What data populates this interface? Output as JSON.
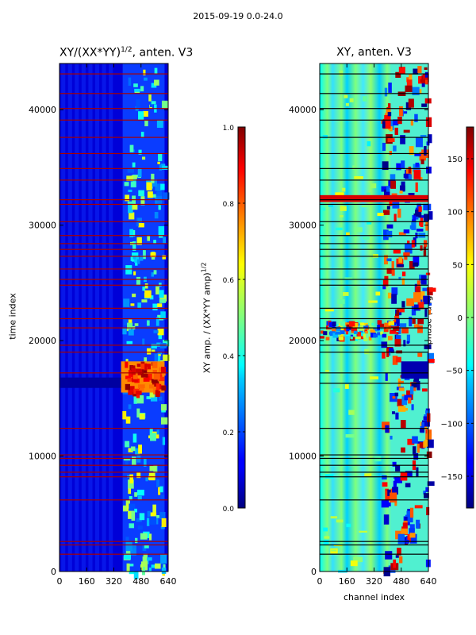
{
  "figure": {
    "suptitle": "2015-09-19 0.0-24.0"
  },
  "chart_data": [
    {
      "type": "heatmap",
      "title_main": "XY/(XX*YY)",
      "title_sup": "1/2",
      "title_tail": ", anten. V3",
      "xlabel": "",
      "ylabel": "time index",
      "xlim": [
        0,
        640
      ],
      "ylim": [
        0,
        44000
      ],
      "xticks": [
        0,
        160,
        320,
        480,
        640
      ],
      "yticks": [
        0,
        10000,
        20000,
        30000,
        40000
      ],
      "colormap": "jet",
      "flag_color": "#a80000",
      "bright_channel_range": [
        400,
        600
      ],
      "saturated_band_y": [
        15500,
        18200
      ],
      "flagged_rows": [
        1500,
        2300,
        2600,
        6200,
        8200,
        8600,
        9200,
        9800,
        10100,
        12400,
        17200,
        19000,
        19600,
        21100,
        21900,
        22800,
        24800,
        25300,
        26200,
        27300,
        27900,
        28400,
        29100,
        30300,
        31800,
        32200,
        33900,
        34900,
        36200,
        37600,
        39100,
        40100,
        41400,
        43100
      ],
      "colorbar": {
        "label_main": "XY amp. / (XX*YY amp)",
        "label_sup": "1/2",
        "vmin": 0.0,
        "vmax": 1.0,
        "ticks": [
          0.0,
          0.2,
          0.4,
          0.6,
          0.8,
          1.0
        ],
        "tick_labels": [
          "0.0",
          "0.2",
          "0.4",
          "0.6",
          "0.8",
          "1.0"
        ]
      }
    },
    {
      "type": "heatmap",
      "title": "XY, anten. V3",
      "xlabel": "channel index",
      "ylabel": "",
      "xlim": [
        0,
        640
      ],
      "ylim": [
        0,
        44000
      ],
      "xticks": [
        0,
        160,
        320,
        480,
        640
      ],
      "yticks": [
        0,
        10000,
        20000,
        30000,
        40000
      ],
      "colormap": "jet",
      "flag_color": "#000000",
      "red_band_y": [
        32000,
        32600
      ],
      "noisy_band_y": [
        20300,
        21800
      ],
      "flagged_rows": [
        1500,
        2300,
        2600,
        6200,
        8200,
        8600,
        9200,
        9800,
        10100,
        12400,
        16300,
        17200,
        19000,
        19600,
        21100,
        21900,
        22800,
        24800,
        25300,
        26200,
        27300,
        27900,
        28400,
        29100,
        30300,
        31800,
        32200,
        33900,
        34900,
        36200,
        37600,
        39100,
        40100,
        41400,
        43100
      ],
      "colorbar": {
        "label": "phase (deg.)",
        "vmin": -180,
        "vmax": 180,
        "ticks": [
          -150,
          -100,
          -50,
          0,
          50,
          100,
          150
        ],
        "tick_labels": [
          "−150",
          "−100",
          "−50",
          "0",
          "50",
          "100",
          "150"
        ]
      }
    }
  ]
}
